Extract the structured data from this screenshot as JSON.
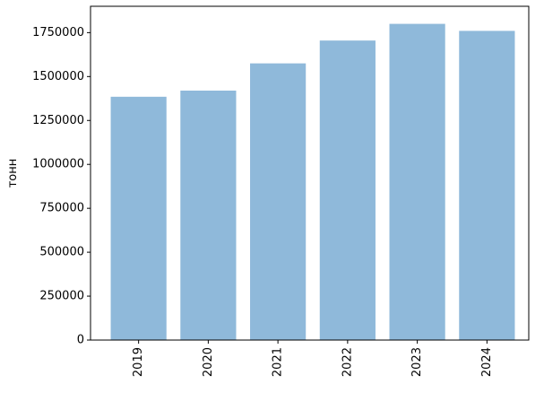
{
  "chart_data": {
    "type": "bar",
    "y_label": "тонн",
    "categories": [
      "2019",
      "2020",
      "2021",
      "2022",
      "2023",
      "2024"
    ],
    "values": [
      1385000,
      1420000,
      1575000,
      1705000,
      1800000,
      1760000
    ],
    "color": "#8fb9da",
    "ylim": [
      0,
      1900000
    ],
    "yticks": [
      0,
      250000,
      500000,
      750000,
      1000000,
      1250000,
      1500000,
      1750000
    ],
    "grid": false
  }
}
